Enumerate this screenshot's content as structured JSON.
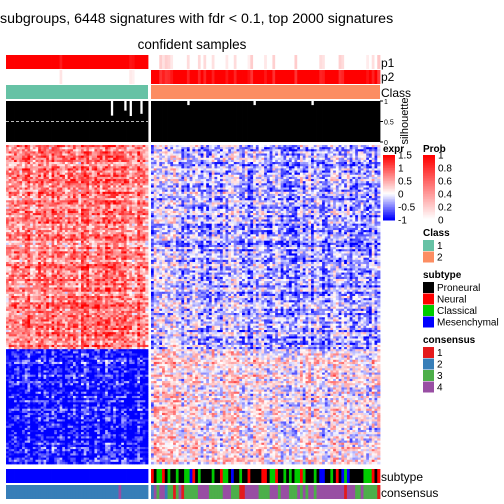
{
  "title": "subgroups, 6448 signatures with fdr < 0.1, top 2000 signatures",
  "subtitle": "confident samples",
  "chart_data": {
    "type": "heatmap",
    "groups": [
      {
        "class": "1",
        "n_samples": 53
      },
      {
        "class": "2",
        "n_samples": 83
      }
    ],
    "annotation_rows": [
      "p1",
      "p2",
      "Class",
      "silhouette"
    ],
    "bottom_annotation_rows": [
      "subtype",
      "consensus"
    ],
    "silhouette_axis": {
      "ticks": [
        "1",
        "0.5",
        "0"
      ],
      "label": "silhouette",
      "cutoff": 0.5
    },
    "expr_scale": {
      "title": "expr",
      "ticks": [
        "1.5",
        "1",
        "0.5",
        "0",
        "-0.5",
        "-1"
      ],
      "min": -1,
      "max": 1.5,
      "colors": {
        "low": "#0000ff",
        "mid": "#ffffff",
        "high": "#ff0000"
      }
    },
    "prob_scale": {
      "title": "Prob",
      "ticks": [
        "1",
        "0.8",
        "0.6",
        "0.4",
        "0.2",
        "0"
      ],
      "min": 0,
      "max": 1,
      "colors": {
        "low": "#ffffff",
        "high": "#ff0000"
      }
    },
    "legends": [
      {
        "title": "Class",
        "items": [
          {
            "label": "1",
            "color": "#66c2a5"
          },
          {
            "label": "2",
            "color": "#fc8d62"
          }
        ]
      },
      {
        "title": "subtype",
        "items": [
          {
            "label": "Proneural",
            "color": "#000000"
          },
          {
            "label": "Neural",
            "color": "#ff0000"
          },
          {
            "label": "Classical",
            "color": "#00cc00"
          },
          {
            "label": "Mesenchymal",
            "color": "#0000ff"
          }
        ]
      },
      {
        "title": "consensus",
        "items": [
          {
            "label": "1",
            "color": "#e41a1c"
          },
          {
            "label": "2",
            "color": "#377eb8"
          },
          {
            "label": "3",
            "color": "#4daf4a"
          },
          {
            "label": "4",
            "color": "#984ea3"
          }
        ]
      }
    ]
  }
}
